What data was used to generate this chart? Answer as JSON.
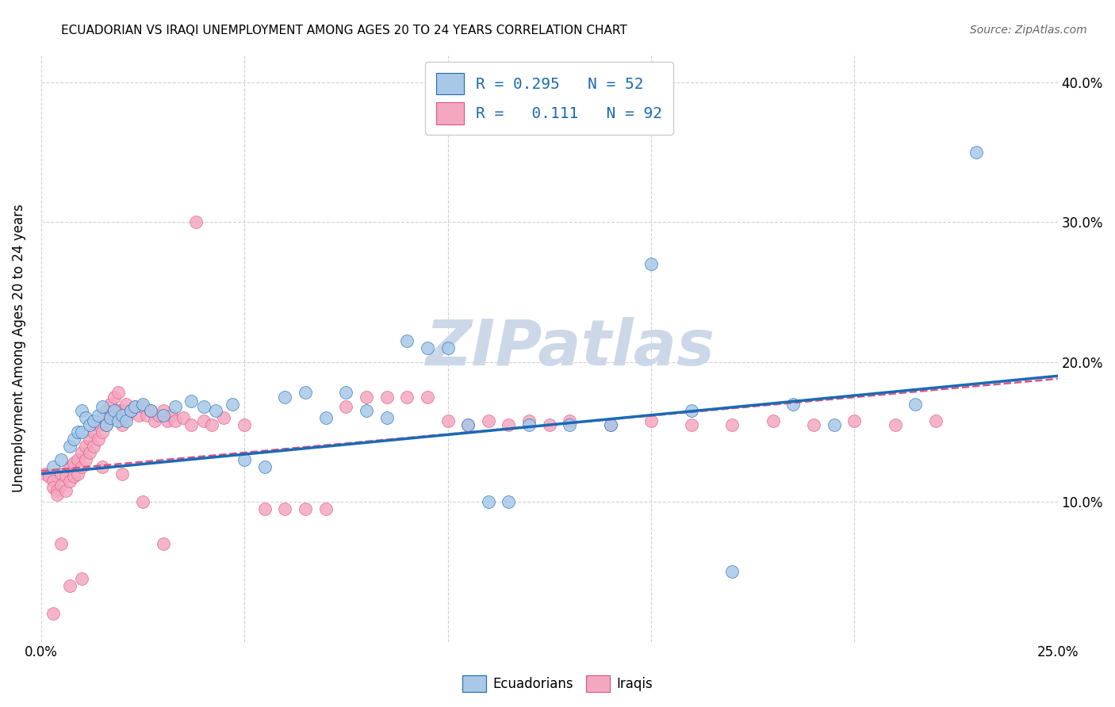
{
  "title": "ECUADORIAN VS IRAQI UNEMPLOYMENT AMONG AGES 20 TO 24 YEARS CORRELATION CHART",
  "source": "Source: ZipAtlas.com",
  "ylabel": "Unemployment Among Ages 20 to 24 years",
  "xlim": [
    0.0,
    0.25
  ],
  "ylim": [
    0.0,
    0.42
  ],
  "legend_label1": "Ecuadorians",
  "legend_label2": "Iraqis",
  "R1": "0.295",
  "N1": "52",
  "R2": "0.111",
  "N2": "92",
  "color_blue": "#a8c8e8",
  "color_pink": "#f4a8c0",
  "line_color_blue": "#1a6ab5",
  "line_color_pink": "#e05080",
  "watermark_color": "#ccd8e8",
  "background_color": "#ffffff",
  "ecuadorians_x": [
    0.003,
    0.005,
    0.007,
    0.008,
    0.009,
    0.01,
    0.01,
    0.011,
    0.012,
    0.013,
    0.014,
    0.015,
    0.016,
    0.017,
    0.018,
    0.019,
    0.02,
    0.021,
    0.022,
    0.023,
    0.025,
    0.027,
    0.03,
    0.033,
    0.037,
    0.04,
    0.043,
    0.047,
    0.05,
    0.055,
    0.06,
    0.065,
    0.07,
    0.075,
    0.08,
    0.085,
    0.09,
    0.095,
    0.1,
    0.105,
    0.11,
    0.115,
    0.12,
    0.13,
    0.14,
    0.15,
    0.16,
    0.17,
    0.185,
    0.195,
    0.215,
    0.23
  ],
  "ecuadorians_y": [
    0.125,
    0.13,
    0.14,
    0.145,
    0.15,
    0.15,
    0.165,
    0.16,
    0.155,
    0.158,
    0.162,
    0.168,
    0.155,
    0.16,
    0.165,
    0.158,
    0.162,
    0.158,
    0.165,
    0.168,
    0.17,
    0.165,
    0.162,
    0.168,
    0.172,
    0.168,
    0.165,
    0.17,
    0.13,
    0.125,
    0.175,
    0.178,
    0.16,
    0.178,
    0.165,
    0.16,
    0.215,
    0.21,
    0.21,
    0.155,
    0.1,
    0.1,
    0.155,
    0.155,
    0.155,
    0.27,
    0.165,
    0.05,
    0.17,
    0.155,
    0.17,
    0.35
  ],
  "iraqis_x": [
    0.001,
    0.002,
    0.003,
    0.003,
    0.004,
    0.004,
    0.005,
    0.005,
    0.006,
    0.006,
    0.007,
    0.007,
    0.008,
    0.008,
    0.009,
    0.009,
    0.01,
    0.01,
    0.011,
    0.011,
    0.012,
    0.012,
    0.013,
    0.013,
    0.014,
    0.014,
    0.015,
    0.015,
    0.016,
    0.016,
    0.017,
    0.017,
    0.018,
    0.018,
    0.019,
    0.019,
    0.02,
    0.02,
    0.021,
    0.021,
    0.022,
    0.023,
    0.024,
    0.025,
    0.026,
    0.027,
    0.028,
    0.029,
    0.03,
    0.031,
    0.032,
    0.033,
    0.035,
    0.037,
    0.038,
    0.04,
    0.042,
    0.045,
    0.05,
    0.055,
    0.06,
    0.065,
    0.07,
    0.075,
    0.08,
    0.085,
    0.09,
    0.095,
    0.1,
    0.105,
    0.11,
    0.115,
    0.12,
    0.125,
    0.13,
    0.14,
    0.15,
    0.16,
    0.17,
    0.18,
    0.19,
    0.2,
    0.21,
    0.22,
    0.025,
    0.03,
    0.015,
    0.02,
    0.007,
    0.01,
    0.005,
    0.003
  ],
  "iraqis_y": [
    0.12,
    0.118,
    0.115,
    0.11,
    0.108,
    0.105,
    0.12,
    0.112,
    0.118,
    0.108,
    0.125,
    0.115,
    0.128,
    0.118,
    0.13,
    0.12,
    0.135,
    0.125,
    0.14,
    0.13,
    0.145,
    0.135,
    0.15,
    0.14,
    0.155,
    0.145,
    0.16,
    0.15,
    0.165,
    0.155,
    0.17,
    0.16,
    0.175,
    0.162,
    0.178,
    0.165,
    0.165,
    0.155,
    0.17,
    0.16,
    0.165,
    0.168,
    0.162,
    0.168,
    0.162,
    0.165,
    0.158,
    0.162,
    0.165,
    0.158,
    0.162,
    0.158,
    0.16,
    0.155,
    0.3,
    0.158,
    0.155,
    0.16,
    0.155,
    0.095,
    0.095,
    0.095,
    0.095,
    0.168,
    0.175,
    0.175,
    0.175,
    0.175,
    0.158,
    0.155,
    0.158,
    0.155,
    0.158,
    0.155,
    0.158,
    0.155,
    0.158,
    0.155,
    0.155,
    0.158,
    0.155,
    0.158,
    0.155,
    0.158,
    0.1,
    0.07,
    0.125,
    0.12,
    0.04,
    0.045,
    0.07,
    0.02
  ],
  "line_ecu_x0": 0.0,
  "line_ecu_y0": 0.12,
  "line_ecu_x1": 0.25,
  "line_ecu_y1": 0.19,
  "line_irq_x0": 0.0,
  "line_irq_y0": 0.122,
  "line_irq_x1": 0.25,
  "line_irq_y1": 0.188
}
